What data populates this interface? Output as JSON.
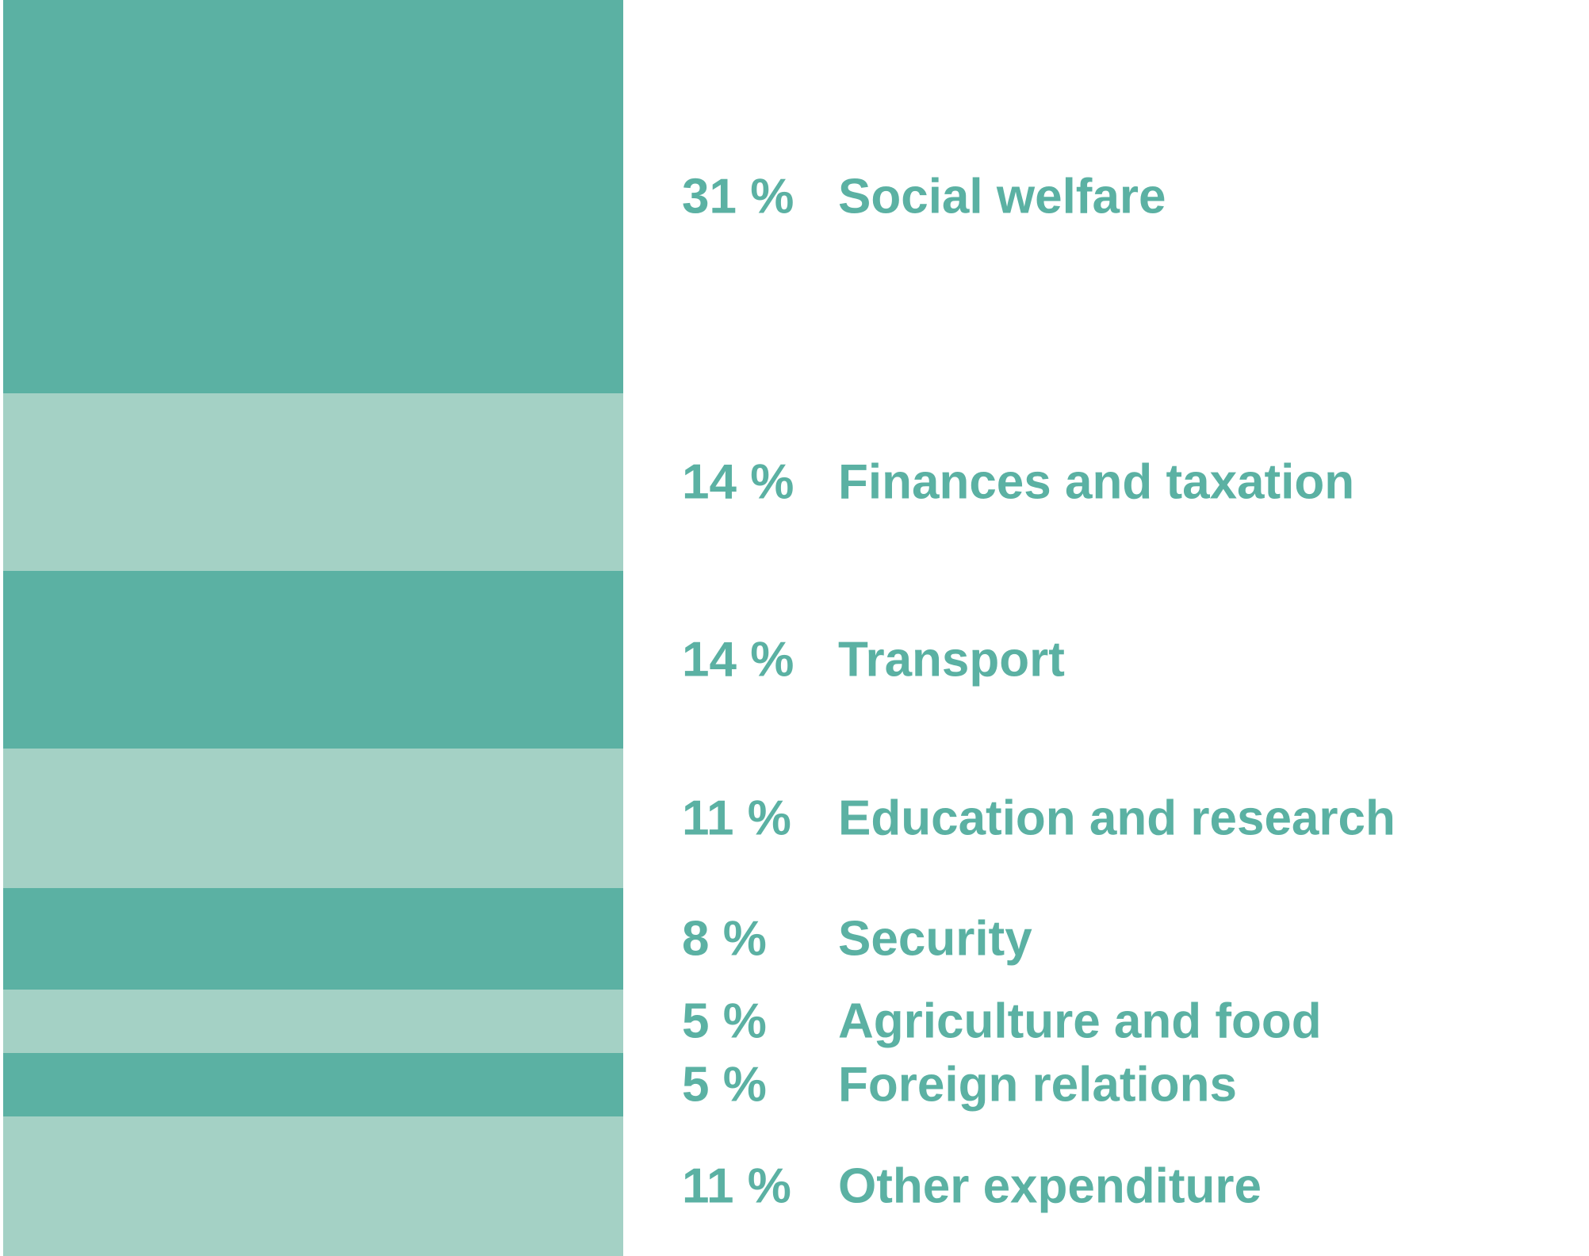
{
  "chart_data": {
    "type": "bar",
    "orientation": "stacked-column",
    "unit": "%",
    "categories": [
      "Social welfare",
      "Finances and taxation",
      "Transport",
      "Education and research",
      "Security",
      "Agriculture and food",
      "Foreign relations",
      "Other expenditure"
    ],
    "values": [
      31,
      14,
      14,
      11,
      8,
      5,
      5,
      11
    ],
    "value_labels": [
      "31 %",
      "14 %",
      "14 %",
      "11 %",
      "8 %",
      "5 %",
      "5 %",
      "11 %"
    ],
    "title": "",
    "xlabel": "",
    "ylabel": "",
    "legend": "labels to the right of each segment",
    "grid": false,
    "colors": {
      "dark": "#5BB1A3",
      "light": "#A4D1C5",
      "label": "#5BB1A3"
    }
  }
}
